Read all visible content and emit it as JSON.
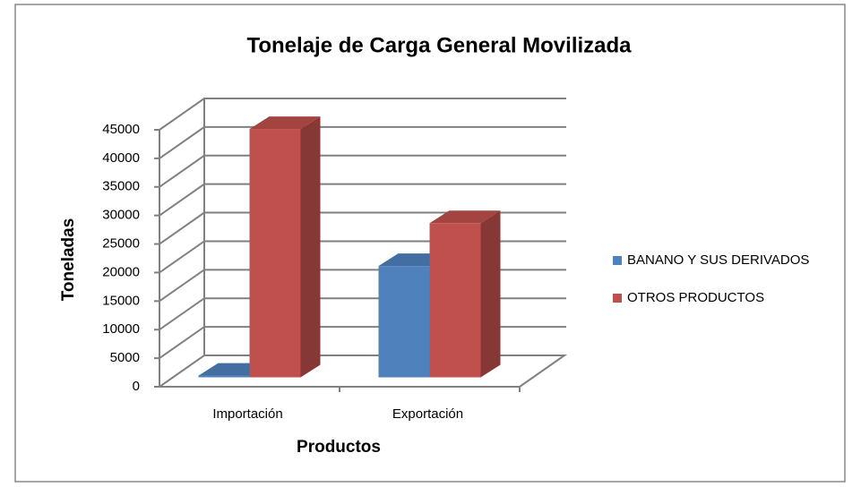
{
  "chart_data": {
    "type": "bar3d",
    "title": "Tonelaje de Carga General Movilizada",
    "x_label": "Productos",
    "y_label": "Toneladas",
    "categories": [
      "Importación",
      "Exportación"
    ],
    "series": [
      {
        "name": "BANANO Y SUS DERIVADOS",
        "color": "#4f81bd",
        "values": [
          300,
          19500
        ]
      },
      {
        "name": "OTROS PRODUCTOS",
        "color": "#c0504d",
        "values": [
          43500,
          27000
        ]
      }
    ],
    "ylim": [
      0,
      45000
    ],
    "yticks": [
      0,
      5000,
      10000,
      15000,
      20000,
      25000,
      30000,
      35000,
      40000,
      45000
    ],
    "grid": true,
    "legend": "right"
  }
}
